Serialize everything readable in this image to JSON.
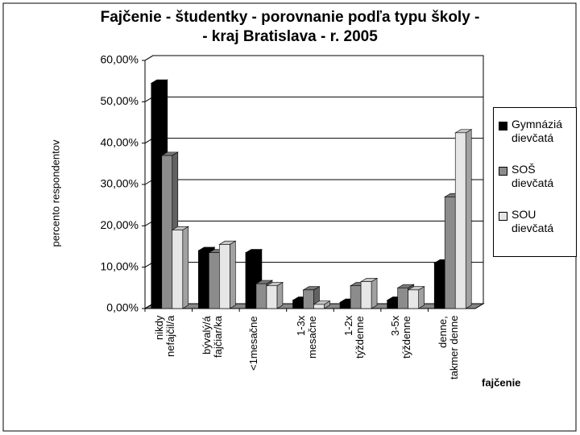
{
  "chart_data": {
    "type": "bar3d",
    "title": "Fajčenie - študentky - porovnanie podľa typu školy -",
    "subtitle": "- kraj Bratislava - r. 2005",
    "y_label": "percento respondentov",
    "x_label": "fajčenie",
    "categories": [
      "nikdy\nnefajčil/a",
      "bývalý/á\nfajčiar/ka",
      "<1mesačne",
      "1-3x\nmesačne",
      "1-2x\ntýždenne",
      "3-5x\ntýždenne",
      "denne,\ntakmer denne"
    ],
    "series": [
      {
        "name": "Gymnáziá dievčatá",
        "color": "#000000",
        "values": [
          54.5,
          14,
          13.5,
          2,
          1.5,
          2,
          11
        ]
      },
      {
        "name": "SOŠ dievčatá",
        "color": "#8c8c8c",
        "values": [
          37,
          13.5,
          6,
          4.5,
          5.5,
          5,
          27
        ]
      },
      {
        "name": "SOU dievčatá",
        "color": "#e6e6e6",
        "values": [
          19,
          15.5,
          5.5,
          1,
          6.5,
          4.5,
          42.5
        ]
      }
    ],
    "ylim": [
      0,
      60
    ],
    "yticks": [
      {
        "value": 0,
        "label": "0,00%"
      },
      {
        "value": 10,
        "label": "10,00%"
      },
      {
        "value": 20,
        "label": "20,00%"
      },
      {
        "value": 30,
        "label": "30,00%"
      },
      {
        "value": 40,
        "label": "40,00%"
      },
      {
        "value": 50,
        "label": "50,00%"
      },
      {
        "value": 60,
        "label": "60,00%"
      }
    ],
    "grid": true,
    "legend": "right"
  }
}
